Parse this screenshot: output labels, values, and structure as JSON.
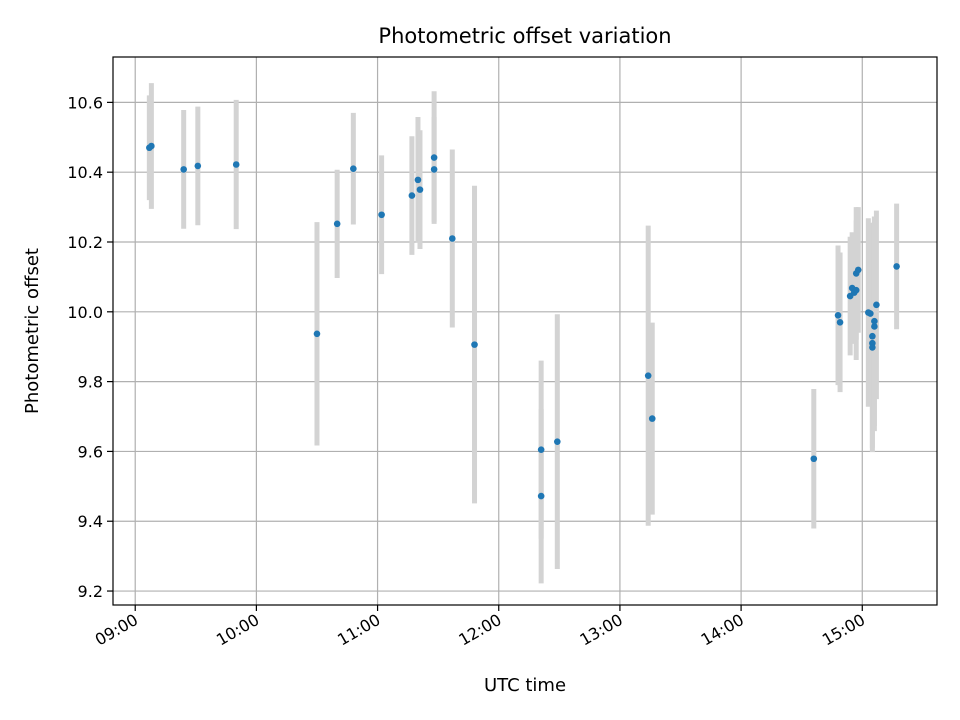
{
  "chart_data": {
    "type": "scatter",
    "title": "Photometric offset variation",
    "xlabel": "UTC time",
    "ylabel": "Photometric offset",
    "x_ticks": [
      "09:00",
      "10:00",
      "11:00",
      "12:00",
      "13:00",
      "14:00",
      "15:00"
    ],
    "y_ticks": [
      "9.2",
      "9.4",
      "9.6",
      "9.8",
      "10.0",
      "10.2",
      "10.4",
      "10.6"
    ],
    "xlim": [
      "08:49",
      "15:37"
    ],
    "ylim": [
      9.16,
      10.73
    ],
    "grid": true,
    "colors": {
      "point": "#1f77b4",
      "errorbar": "#d3d3d3",
      "grid": "#b0b0b0"
    },
    "points": [
      {
        "time": "09:07",
        "y": 10.47,
        "err": 0.15
      },
      {
        "time": "09:08",
        "y": 10.475,
        "err": 0.18
      },
      {
        "time": "09:24",
        "y": 10.408,
        "err": 0.17
      },
      {
        "time": "09:31",
        "y": 10.418,
        "err": 0.17
      },
      {
        "time": "09:50",
        "y": 10.422,
        "err": 0.185
      },
      {
        "time": "10:30",
        "y": 9.937,
        "err": 0.32
      },
      {
        "time": "10:40",
        "y": 10.252,
        "err": 0.155
      },
      {
        "time": "10:48",
        "y": 10.41,
        "err": 0.16
      },
      {
        "time": "11:02",
        "y": 10.278,
        "err": 0.17
      },
      {
        "time": "11:17",
        "y": 10.333,
        "err": 0.17
      },
      {
        "time": "11:20",
        "y": 10.378,
        "err": 0.18
      },
      {
        "time": "11:21",
        "y": 10.35,
        "err": 0.17
      },
      {
        "time": "11:28",
        "y": 10.442,
        "err": 0.19
      },
      {
        "time": "11:28",
        "y": 10.408,
        "err": 0.15
      },
      {
        "time": "11:37",
        "y": 10.21,
        "err": 0.255
      },
      {
        "time": "11:48",
        "y": 9.906,
        "err": 0.455
      },
      {
        "time": "12:21",
        "y": 9.605,
        "err": 0.255
      },
      {
        "time": "12:21",
        "y": 9.472,
        "err": 0.25
      },
      {
        "time": "12:29",
        "y": 9.628,
        "err": 0.365
      },
      {
        "time": "13:14",
        "y": 9.817,
        "err": 0.43
      },
      {
        "time": "13:16",
        "y": 9.694,
        "err": 0.275
      },
      {
        "time": "14:36",
        "y": 9.579,
        "err": 0.2
      },
      {
        "time": "14:48",
        "y": 9.99,
        "err": 0.2
      },
      {
        "time": "14:49",
        "y": 9.97,
        "err": 0.2
      },
      {
        "time": "14:54",
        "y": 10.045,
        "err": 0.17
      },
      {
        "time": "14:55",
        "y": 10.068,
        "err": 0.16
      },
      {
        "time": "14:56",
        "y": 10.055,
        "err": 0.14
      },
      {
        "time": "14:57",
        "y": 10.062,
        "err": 0.2
      },
      {
        "time": "14:57",
        "y": 10.11,
        "err": 0.19
      },
      {
        "time": "14:58",
        "y": 10.12,
        "err": 0.18
      },
      {
        "time": "15:03",
        "y": 9.998,
        "err": 0.27
      },
      {
        "time": "15:04",
        "y": 9.995,
        "err": 0.26
      },
      {
        "time": "15:05",
        "y": 9.93,
        "err": 0.2
      },
      {
        "time": "15:05",
        "y": 9.91,
        "err": 0.3
      },
      {
        "time": "15:05",
        "y": 9.898,
        "err": 0.3
      },
      {
        "time": "15:06",
        "y": 9.958,
        "err": 0.3
      },
      {
        "time": "15:06",
        "y": 9.973,
        "err": 0.3
      },
      {
        "time": "15:07",
        "y": 10.02,
        "err": 0.27
      },
      {
        "time": "15:17",
        "y": 10.13,
        "err": 0.18
      }
    ]
  }
}
